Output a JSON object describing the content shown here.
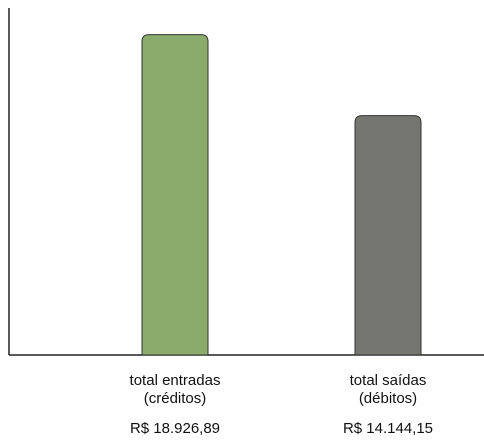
{
  "chart_data": {
    "type": "bar",
    "title": "",
    "xlabel": "",
    "ylabel": "",
    "grid": false,
    "categories": [
      {
        "line1": "total entradas",
        "line2": "(créditos)",
        "value_label": "R$ 18.926,89"
      },
      {
        "line1": "total saídas",
        "line2": "(débitos)",
        "value_label": "R$ 14.144,15"
      }
    ],
    "values": [
      18926.89,
      14144.15
    ],
    "ylim": [
      0,
      20500
    ],
    "colors": [
      "#8aab6c",
      "#767670"
    ]
  }
}
